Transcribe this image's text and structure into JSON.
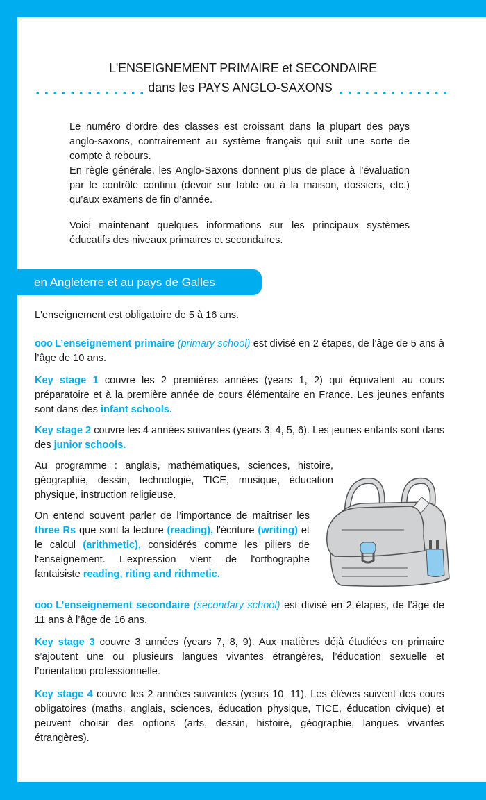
{
  "colors": {
    "accent": "#00aeef"
  },
  "header": {
    "title_line1": "L'ENSEIGNEMENT PRIMAIRE et SECONDAIRE",
    "title_line2": "dans les PAYS ANGLO-SAXONS"
  },
  "intro": [
    [
      {
        "t": "Le numéro d’ordre des classes est croissant dans la plupart des pays anglo-saxons, contrairement au système français qui suit une sorte de compte à rebours.",
        "s": "n"
      }
    ],
    [
      {
        "t": "En règle générale, les Anglo-Saxons donnent plus de place à l’évaluation par le contrôle continu (devoir sur table ou à la maison, dossiers, etc.) qu’aux examens de fin d’année.",
        "s": "n"
      }
    ],
    [
      {
        "t": "Voici maintenant quelques informations sur les principaux systèmes éducatifs des niveaux primaires et secondaires.",
        "s": "n"
      }
    ]
  ],
  "section": {
    "banner": "en Angleterre et au pays de Galles",
    "image": "schoolbag-illustration",
    "paragraphs": [
      [
        {
          "t": "L'enseignement est obligatoire de 5 à 16 ans.",
          "s": "n"
        }
      ],
      [
        {
          "t": "ooo ",
          "s": "o"
        },
        {
          "t": "L’enseignement primaire ",
          "s": "b"
        },
        {
          "t": "(primary school)",
          "s": "i"
        },
        {
          "t": " est divisé en 2 étapes, de l’âge de 5 ans à l’âge de 10 ans.",
          "s": "n"
        }
      ],
      [
        {
          "t": "Key stage 1",
          "s": "b"
        },
        {
          "t": " couvre les 2 premières années (years 1, 2) qui équivalent au cours préparatoire et à la première année de cours élémentaire en France. Les jeunes enfants sont dans des ",
          "s": "n"
        },
        {
          "t": "infant schools.",
          "s": "b"
        }
      ],
      [
        {
          "t": "Key stage 2",
          "s": "b"
        },
        {
          "t": " couvre les 4 années suivantes (years 3, 4, 5, 6).  Les jeunes enfants sont dans des ",
          "s": "n"
        },
        {
          "t": "junior schools.",
          "s": "b"
        }
      ],
      [
        {
          "t": "Au programme : anglais, mathématiques, sciences, histoire, géographie, dessin, technologie, TICE,  musique, éducation physique, instruction religieuse.",
          "s": "n"
        }
      ],
      [
        {
          "t": "On entend souvent parler de l’importance de maîtriser les ",
          "s": "n"
        },
        {
          "t": "three Rs",
          "s": "b"
        },
        {
          "t": " que sont la lecture ",
          "s": "n"
        },
        {
          "t": "(reading),",
          "s": "b"
        },
        {
          "t": " l'écriture ",
          "s": "n"
        },
        {
          "t": "(writing)",
          "s": "b"
        },
        {
          "t": " et le calcul ",
          "s": "n"
        },
        {
          "t": "(arithmetic),",
          "s": "b"
        },
        {
          "t": " considérés comme les piliers de l'enseignement. L'expression vient de l'orthographe fantaisiste ",
          "s": "n"
        },
        {
          "t": "reading, riting and rithmetic.",
          "s": "b"
        }
      ],
      [
        {
          "t": "ooo ",
          "s": "o"
        },
        {
          "t": "L’enseignement secondaire ",
          "s": "b"
        },
        {
          "t": "(secondary school)",
          "s": "i"
        },
        {
          "t": " est divisé en 2 étapes, de l’âge de 11 ans à l’âge de 16 ans.",
          "s": "n"
        }
      ],
      [
        {
          "t": "Key stage 3",
          "s": "b"
        },
        {
          "t": " couvre 3 années (years 7, 8, 9). Aux matières déjà étudiées en primaire s’ajoutent une ou plusieurs langues vivantes étrangères, l’éducation sexuelle et l’orientation professionnelle.",
          "s": "n"
        }
      ],
      [
        {
          "t": "Key stage 4",
          "s": "b"
        },
        {
          "t": " couvre les 2 années suivantes (years 10, 11). Les élèves suivent des cours obligatoires (maths, anglais, sciences, éducation physique, TICE, éducation civique) et peuvent choisir des options (arts, dessin, histoire, géographie, langues vivantes étrangères).",
          "s": "n"
        }
      ]
    ]
  }
}
